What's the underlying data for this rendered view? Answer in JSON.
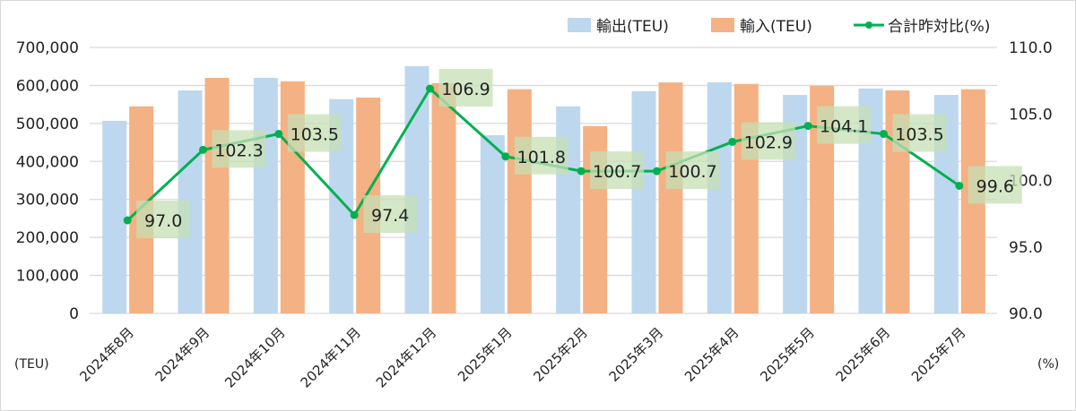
{
  "chart_data": {
    "type": "bar+line",
    "categories": [
      "2024年8月",
      "2024年9月",
      "2024年10月",
      "2024年11月",
      "2024年12月",
      "2025年1月",
      "2025年2月",
      "2025年3月",
      "2025年4月",
      "2025年5月",
      "2025年6月",
      "2025年7月"
    ],
    "series": [
      {
        "name": "輸出(TEU)",
        "type": "bar",
        "axis": "left",
        "color": "#bdd7ee",
        "values": [
          507000,
          587000,
          620000,
          564000,
          651000,
          469000,
          545000,
          585000,
          608000,
          575000,
          592000,
          575000
        ]
      },
      {
        "name": "輸入(TEU)",
        "type": "bar",
        "axis": "left",
        "color": "#f4b183",
        "values": [
          545000,
          620000,
          611000,
          568000,
          606000,
          590000,
          493000,
          608000,
          604000,
          599000,
          587000,
          590000
        ]
      },
      {
        "name": "合計昨対比(%)",
        "type": "line",
        "axis": "right",
        "color": "#00b050",
        "values": [
          97.0,
          102.3,
          103.5,
          97.4,
          106.9,
          101.8,
          100.7,
          100.7,
          102.9,
          104.1,
          103.5,
          99.6
        ],
        "labels": [
          "97.0",
          "102.3",
          "103.5",
          "97.4",
          "106.9",
          "101.8",
          "100.7",
          "100.7",
          "102.9",
          "104.1",
          "103.5",
          "99.6"
        ]
      }
    ],
    "left_axis": {
      "unit": "(TEU)",
      "ylim": [
        0,
        700000
      ],
      "ticks": [
        "0",
        "100,000",
        "200,000",
        "300,000",
        "400,000",
        "500,000",
        "600,000",
        "700,000"
      ]
    },
    "right_axis": {
      "unit": "(%)",
      "ylim": [
        90,
        110
      ],
      "ticks": [
        "90.0",
        "95.0",
        "100.0",
        "105.0",
        "110.0"
      ]
    },
    "grid": true,
    "legend": "top-right",
    "label_box_color": "#c5e0b4"
  }
}
